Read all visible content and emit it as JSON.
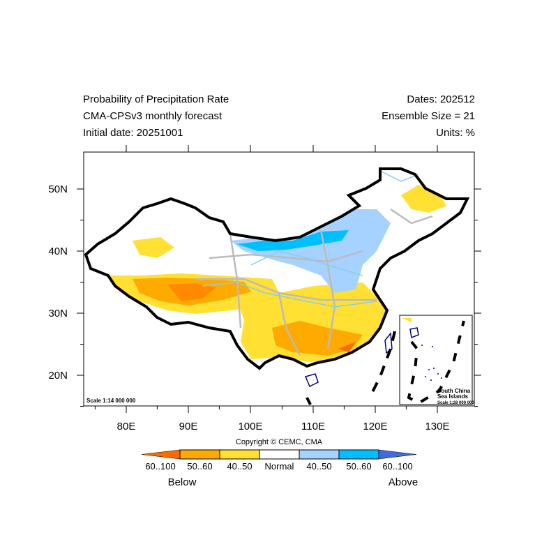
{
  "header": {
    "title": "Probability of Precipitation Rate",
    "model": "CMA-CPSv3 monthly forecast",
    "initial_date": "Initial date: 20251001",
    "dates": "Dates: 202512",
    "ensemble": "Ensemble Size = 21",
    "units": "Units: %"
  },
  "map": {
    "lon_ticks": [
      "80E",
      "90E",
      "100E",
      "110E",
      "120E",
      "130E"
    ],
    "lat_ticks": [
      "50N",
      "40N",
      "30N",
      "20N"
    ],
    "scale_label": "Scale 1:14 000 000",
    "inset": {
      "line1": "South China",
      "line2": "Sea Islands",
      "scale": "Scale 1:28 000 000"
    }
  },
  "legend": {
    "copyright": "Copyright © CEMC, CMA",
    "bins": [
      {
        "label": "60..100",
        "color": "#ff6a00"
      },
      {
        "label": "50..60",
        "color": "#ffaa00"
      },
      {
        "label": "40..50",
        "color": "#ffe033"
      },
      {
        "label": "Normal",
        "color": "#ffffff"
      },
      {
        "label": "40..50",
        "color": "#a6d2ff"
      },
      {
        "label": "50..60",
        "color": "#00bfff"
      },
      {
        "label": "60..100",
        "color": "#4169e1"
      }
    ],
    "below": "Below",
    "above": "Above"
  }
}
